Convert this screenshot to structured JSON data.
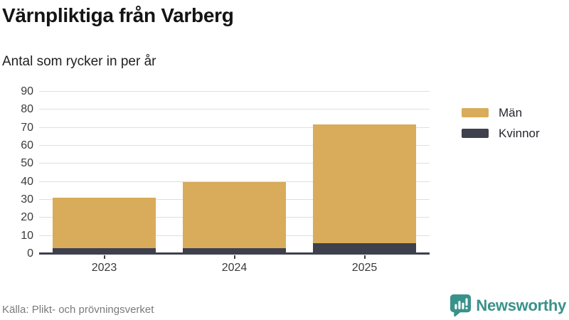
{
  "header": {
    "title": "Värnpliktiga från Varberg",
    "subtitle": "Antal som rycker in per år"
  },
  "footer": {
    "source": "Källa: Plikt- och prövningsverket",
    "brand": "Newsworthy",
    "brand_icon": "newsworthy-speech-bubble-bar-chart-icon"
  },
  "colors": {
    "men": "#D8AC5A",
    "women": "#3F404E",
    "axis": "#3F404E",
    "gridline": "#DFDFDF",
    "brand_teal": "#39928A",
    "title_text": "#141414",
    "tick_text": "#3A3A3A",
    "source_text": "#7A7A7A"
  },
  "chart_data": {
    "type": "bar",
    "stacked": true,
    "title": "Värnpliktiga från Varberg",
    "subtitle": "Antal som rycker in per år",
    "categories": [
      "2023",
      "2024",
      "2025"
    ],
    "series": [
      {
        "name": "Män",
        "color": "#D8AC5A",
        "values": [
          28,
          37,
          66
        ]
      },
      {
        "name": "Kvinnor",
        "color": "#3F404E",
        "values": [
          3,
          3,
          6
        ]
      }
    ],
    "stack_bottom_series": "Kvinnor",
    "totals": [
      31,
      40,
      72
    ],
    "xlabel": "",
    "ylabel": "",
    "ylim": [
      0,
      90
    ],
    "yticks": [
      0,
      10,
      20,
      30,
      40,
      50,
      60,
      70,
      80,
      90
    ],
    "grid": true,
    "legend_position": "right"
  }
}
